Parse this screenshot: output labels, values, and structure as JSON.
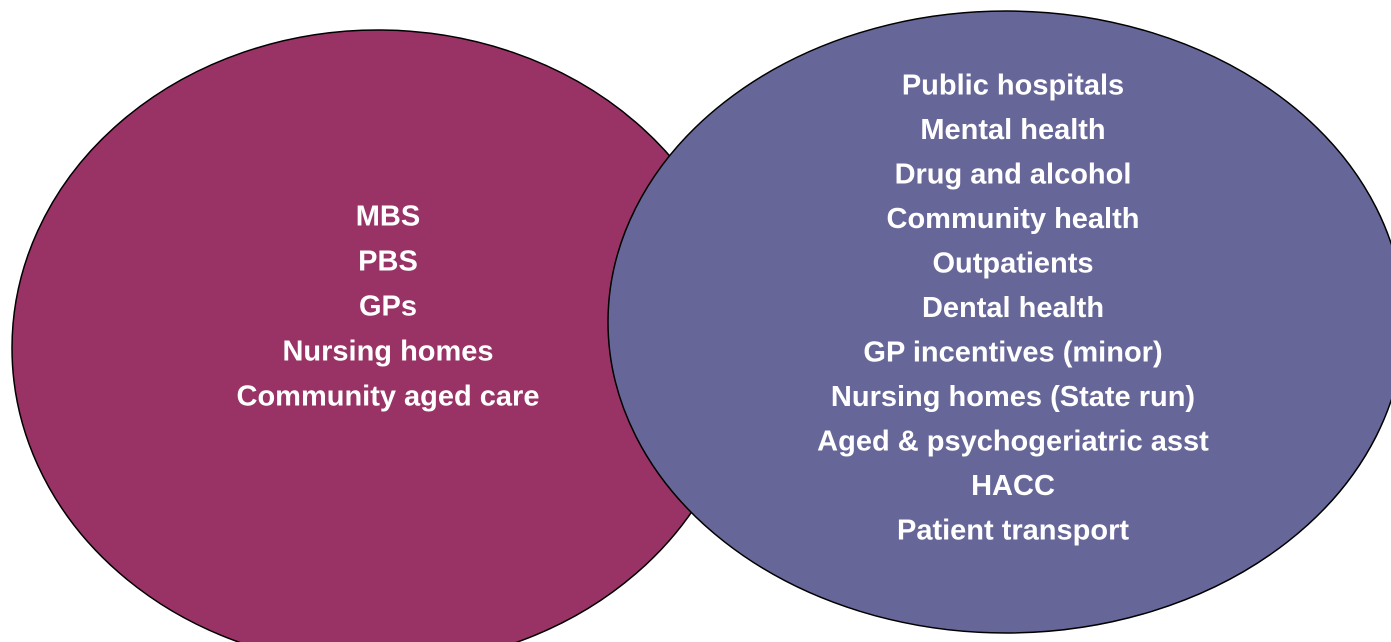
{
  "left": {
    "items": [
      "MBS",
      "PBS",
      "GPs",
      "Nursing homes",
      "Community aged care"
    ]
  },
  "right": {
    "items": [
      "Public hospitals",
      "Mental health",
      "Drug and alcohol",
      "Community health",
      "Outpatients",
      "Dental health",
      "GP incentives (minor)",
      "Nursing homes (State run)",
      "Aged & psychogeriatric asst",
      "HACC",
      "Patient transport"
    ]
  }
}
